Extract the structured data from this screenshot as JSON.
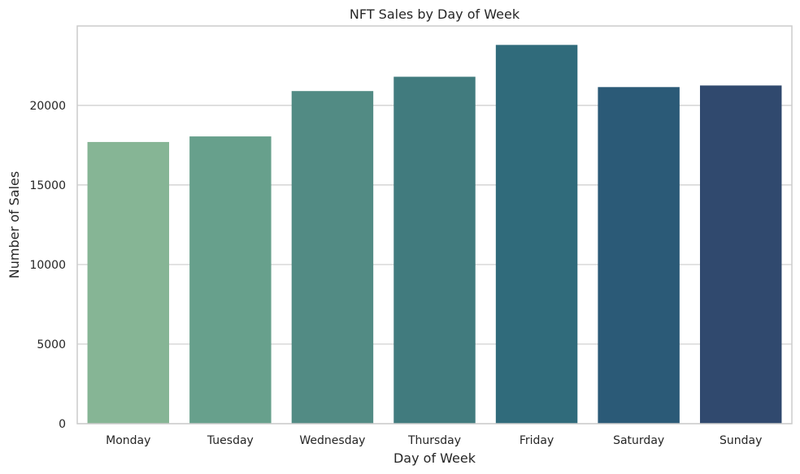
{
  "chart_data": {
    "type": "bar",
    "title": "NFT Sales by Day of Week",
    "xlabel": "Day of Week",
    "ylabel": "Number of Sales",
    "categories": [
      "Monday",
      "Tuesday",
      "Wednesday",
      "Thursday",
      "Friday",
      "Saturday",
      "Sunday"
    ],
    "values": [
      17700,
      18050,
      20900,
      21800,
      23800,
      21150,
      21250
    ],
    "colors": [
      "#86b595",
      "#67a08c",
      "#528b84",
      "#417b7e",
      "#306b7b",
      "#2b5a77",
      "#30496e"
    ],
    "ylim": [
      0,
      24990
    ],
    "yticks": [
      0,
      5000,
      10000,
      15000,
      20000
    ],
    "ytick_labels": [
      "0",
      "5000",
      "10000",
      "15000",
      "20000"
    ],
    "grid": "horizontal",
    "legend": "none"
  }
}
